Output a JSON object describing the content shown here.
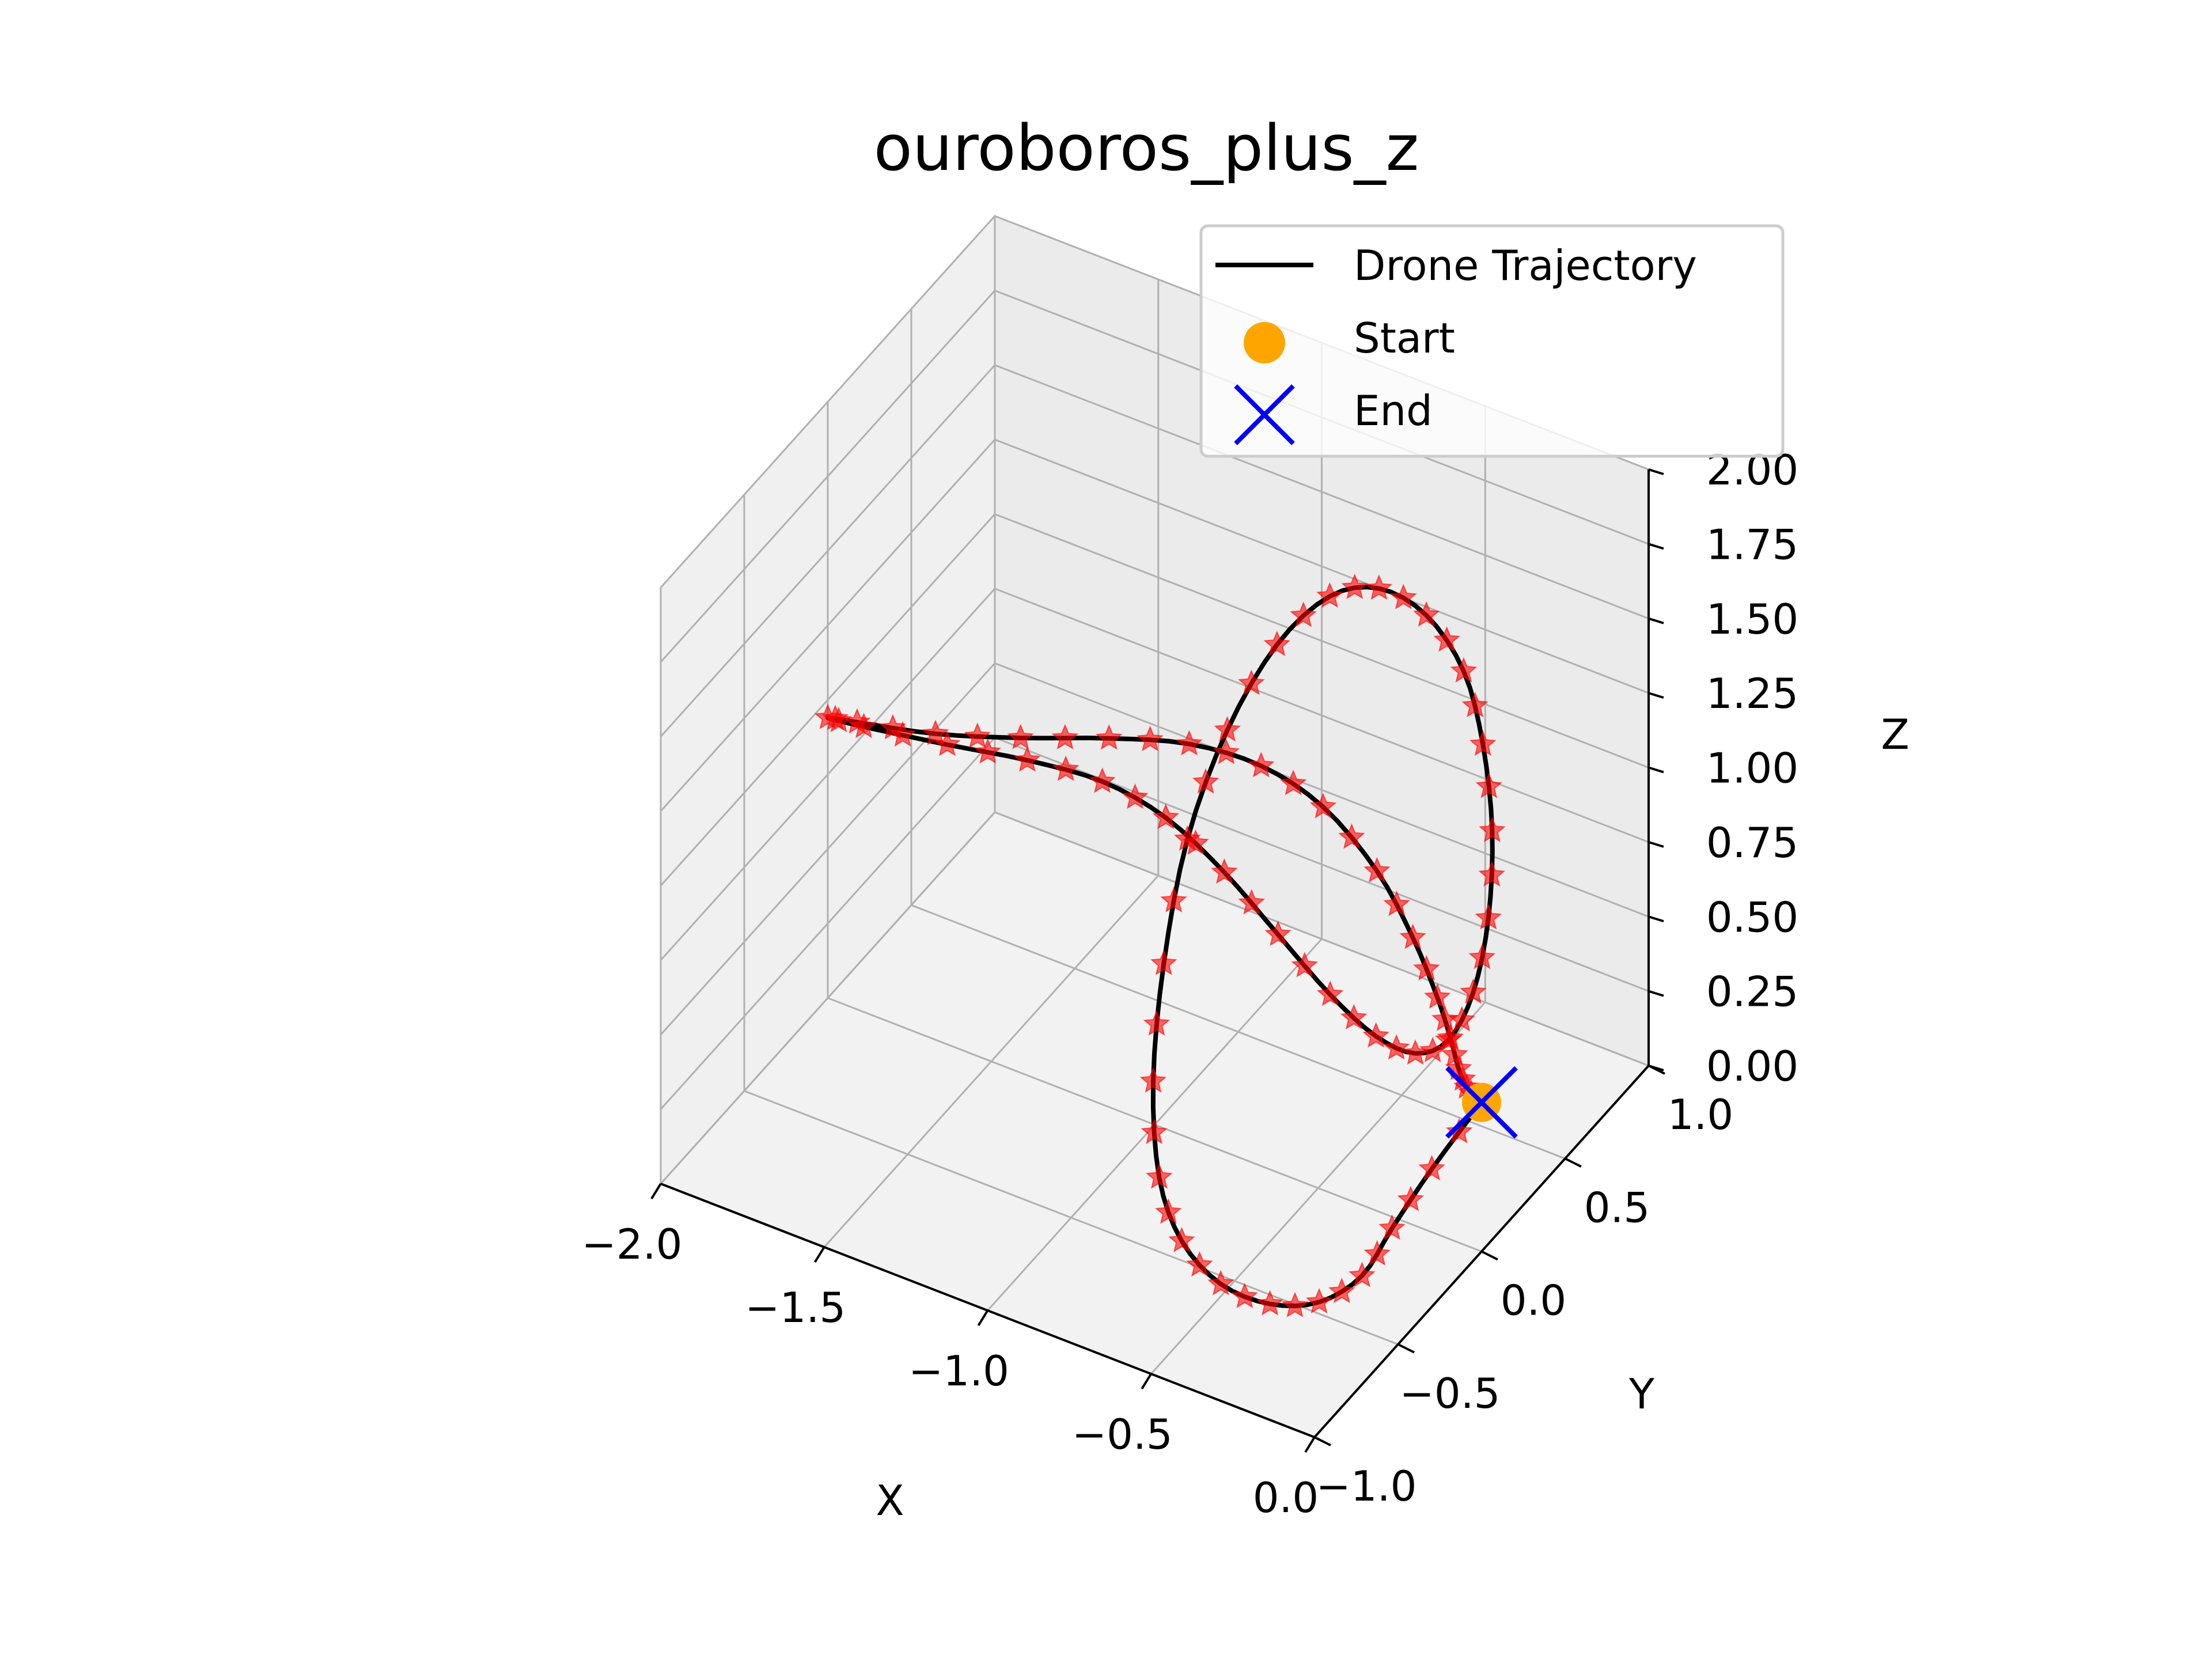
{
  "chart_data": {
    "type": "line",
    "projection": "3d",
    "title": "ouroboros_plus_z",
    "xlabel": "X",
    "ylabel": "Y",
    "zlabel": "Z",
    "xlim": [
      -2.0,
      0.0
    ],
    "ylim": [
      -1.0,
      1.0
    ],
    "zlim": [
      0.0,
      2.0
    ],
    "x_ticks": [
      "−2.0",
      "−1.5",
      "−1.0",
      "−0.5",
      "0.0"
    ],
    "y_ticks": [
      "−1.0",
      "−0.5",
      "0.0",
      "0.5",
      "1.0"
    ],
    "z_ticks": [
      "0.00",
      "0.25",
      "0.50",
      "0.75",
      "1.00",
      "1.25",
      "1.50",
      "1.75",
      "2.00"
    ],
    "grid": true,
    "legend_position": "top-right",
    "series": [
      {
        "name": "Drone Trajectory",
        "kind": "line",
        "color": "#000000"
      },
      {
        "name": "Start",
        "kind": "point",
        "color": "#FFA500",
        "x": 0.0,
        "y": 0.0,
        "z": 0.5
      },
      {
        "name": "End",
        "kind": "point",
        "color": "#0000FF",
        "x": 0.0,
        "y": 0.0,
        "z": 0.5
      }
    ],
    "trajectory_markers_color": "#FF0000",
    "trajectory": {
      "x": [
        0.0,
        -0.05,
        -0.08,
        -0.1,
        -0.18,
        -0.3,
        -0.44,
        -0.58,
        -0.7,
        -0.8,
        -0.87,
        -0.9,
        -0.88,
        -0.82,
        -0.72,
        -0.6,
        -0.45,
        -0.3,
        -0.18,
        -0.08,
        -0.02,
        0.0,
        -0.02,
        -0.08,
        -0.18,
        -0.32,
        -0.5,
        -0.7,
        -0.92,
        -1.15,
        -1.4,
        -1.65,
        -1.9,
        -2.0,
        -1.9,
        -1.65,
        -1.4,
        -1.15,
        -0.92,
        -0.7,
        -0.5,
        -0.32,
        -0.2,
        -0.12,
        -0.08,
        -0.06,
        -0.04,
        -0.02,
        0.0
      ],
      "y": [
        0.0,
        -0.2,
        -0.38,
        -0.52,
        -0.62,
        -0.68,
        -0.7,
        -0.66,
        -0.56,
        -0.4,
        -0.2,
        0.0,
        0.2,
        0.38,
        0.5,
        0.56,
        0.55,
        0.48,
        0.36,
        0.22,
        0.08,
        -0.05,
        -0.16,
        -0.24,
        -0.28,
        -0.28,
        -0.24,
        -0.17,
        -0.09,
        -0.02,
        0.02,
        0.03,
        0.02,
        0.0,
        -0.02,
        -0.04,
        -0.02,
        0.02,
        0.05,
        0.05,
        0.03,
        0.0,
        -0.02,
        -0.03,
        -0.03,
        -0.02,
        -0.01,
        0.0,
        0.0
      ],
      "z": [
        0.5,
        0.38,
        0.28,
        0.2,
        0.14,
        0.12,
        0.14,
        0.2,
        0.3,
        0.48,
        0.72,
        1.0,
        1.25,
        1.45,
        1.58,
        1.62,
        1.6,
        1.52,
        1.4,
        1.24,
        1.06,
        0.9,
        0.8,
        0.78,
        0.82,
        0.9,
        1.0,
        1.08,
        1.12,
        1.1,
        1.04,
        0.98,
        0.94,
        0.94,
        0.98,
        1.06,
        1.14,
        1.22,
        1.28,
        1.3,
        1.26,
        1.14,
        0.98,
        0.82,
        0.7,
        0.6,
        0.54,
        0.51,
        0.5
      ]
    }
  }
}
